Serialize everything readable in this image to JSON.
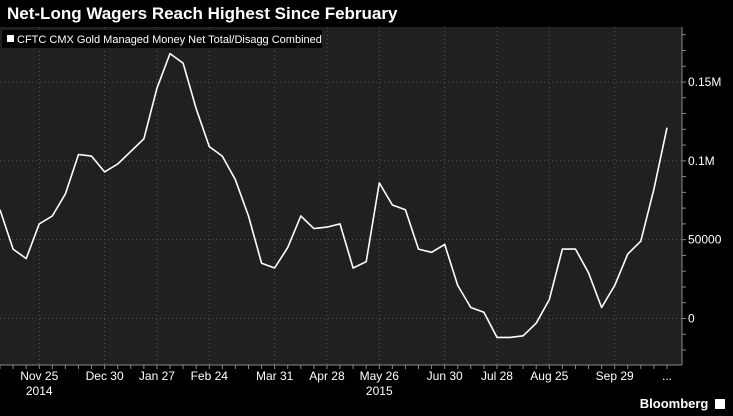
{
  "title": "Net-Long Wagers Reach Highest Since February",
  "brand": "Bloomberg",
  "chart_data": {
    "type": "line",
    "title": "Net-Long Wagers Reach Highest Since February",
    "legend_position": "top-left",
    "grid": true,
    "series": [
      {
        "name": "CFTC CMX Gold Managed Money Net Total/Disagg Combined",
        "color": "#ffffff",
        "values": [
          69000,
          44000,
          38000,
          60000,
          65000,
          79000,
          104000,
          103000,
          93000,
          98000,
          106000,
          114000,
          146000,
          168000,
          162000,
          133000,
          109000,
          103000,
          88000,
          65000,
          35000,
          32000,
          45000,
          65000,
          57000,
          58000,
          60000,
          32000,
          36000,
          86000,
          72000,
          69000,
          44000,
          42000,
          47000,
          21000,
          7000,
          4000,
          -12000,
          -12000,
          -11000,
          -3000,
          12000,
          44000,
          44000,
          29000,
          7000,
          21000,
          41000,
          49000,
          82000,
          121000
        ]
      }
    ],
    "x_ticks": [
      "Nov 25",
      "Dec 30",
      "Jan 27",
      "Feb 24",
      "Mar 31",
      "Apr 28",
      "May 26",
      "Jun 30",
      "Jul 28",
      "Aug 25",
      "Sep 29",
      "..."
    ],
    "x_tick_index": [
      3,
      8,
      12,
      16,
      21,
      25,
      29,
      34,
      38,
      42,
      47,
      51
    ],
    "year_labels": [
      {
        "label": "2014",
        "index": 3
      },
      {
        "label": "2015",
        "index": 29
      }
    ],
    "y_ticks": [
      0,
      50000,
      100000,
      150000
    ],
    "y_tick_labels": [
      "0",
      "50000",
      "0.1M",
      "0.15M"
    ],
    "ylim": [
      -30000,
      185000
    ]
  }
}
